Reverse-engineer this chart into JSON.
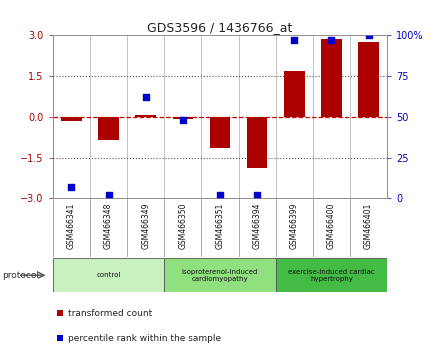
{
  "title": "GDS3596 / 1436766_at",
  "samples": [
    "GSM466341",
    "GSM466348",
    "GSM466349",
    "GSM466350",
    "GSM466351",
    "GSM466394",
    "GSM466399",
    "GSM466400",
    "GSM466401"
  ],
  "bar_values": [
    -0.15,
    -0.85,
    0.07,
    -0.07,
    -1.15,
    -1.9,
    1.7,
    2.85,
    2.75
  ],
  "dot_values": [
    7,
    2,
    62,
    48,
    2,
    2,
    97,
    97,
    100
  ],
  "ylim": [
    -3,
    3
  ],
  "yticks_left": [
    -3,
    -1.5,
    0,
    1.5,
    3
  ],
  "yticks_right": [
    0,
    25,
    50,
    75,
    100
  ],
  "bar_color": "#aa0000",
  "dot_color": "#0000cc",
  "zero_line_color": "#cc0000",
  "dotted_line_color": "#555555",
  "right_axis_color": "#0000cc",
  "groups": [
    {
      "label": "control",
      "start": 0,
      "end": 3,
      "color": "#c8f0c0"
    },
    {
      "label": "isoproterenol-induced\ncardiomyopathy",
      "start": 3,
      "end": 6,
      "color": "#90e080"
    },
    {
      "label": "exercise-induced cardiac\nhypertrophy",
      "start": 6,
      "end": 9,
      "color": "#44bb44"
    }
  ],
  "protocol_label": "protocol",
  "legend_items": [
    {
      "label": "transformed count",
      "color": "#aa0000"
    },
    {
      "label": "percentile rank within the sample",
      "color": "#0000cc"
    }
  ],
  "background_color": "#ffffff",
  "plot_bg_color": "#ffffff",
  "label_box_color": "#cccccc",
  "bar_width": 0.55
}
